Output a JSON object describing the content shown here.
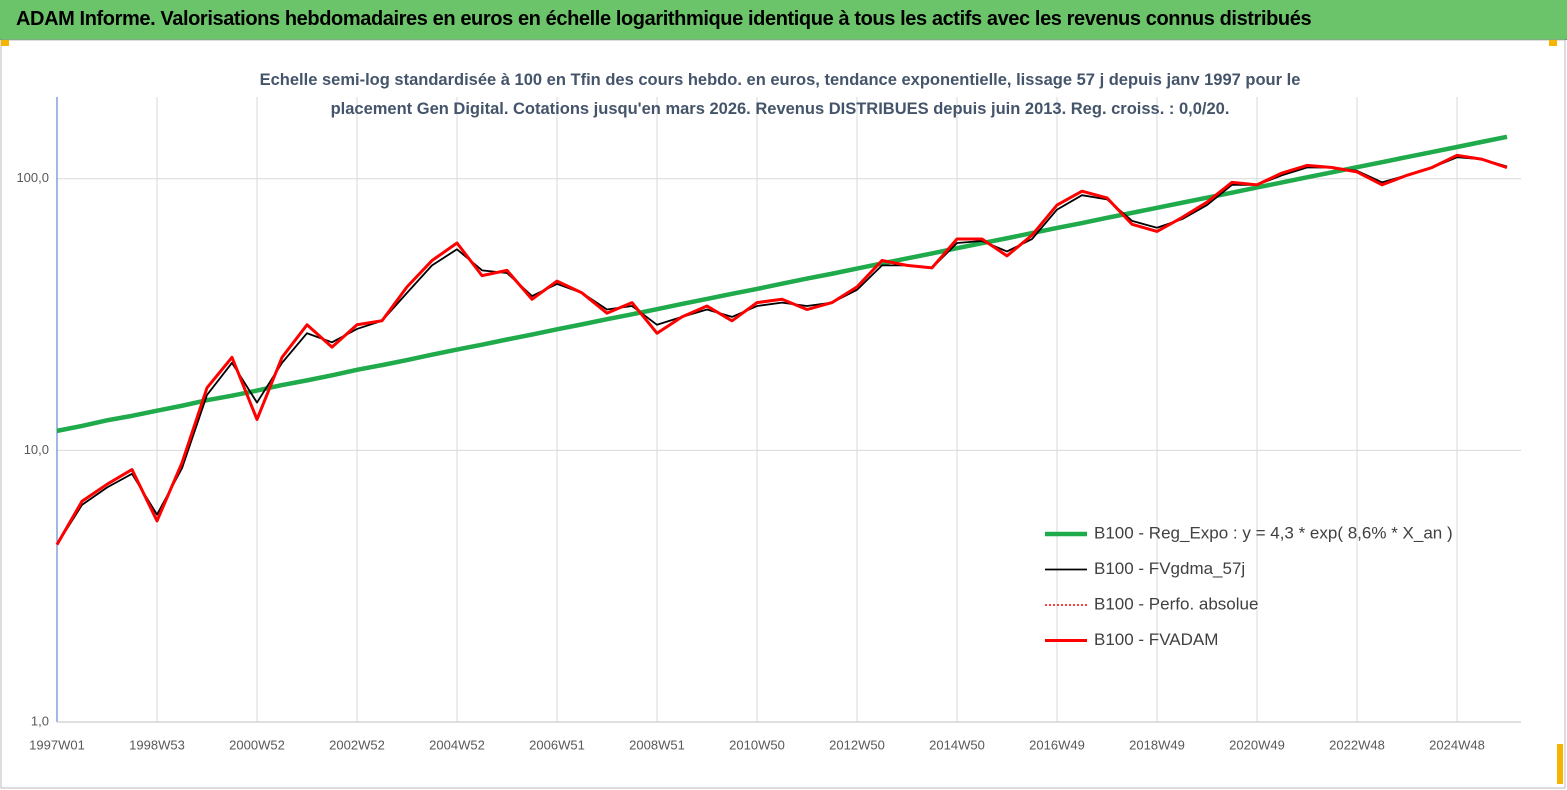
{
  "chart_data": {
    "type": "line",
    "header": "ADAM Informe. Valorisations hebdomadaires en euros en échelle logarithmique identique à tous les actifs avec les revenus connus distribués",
    "title": "Echelle semi-log standardisée à 100 en Tfin des cours hebdo. en euros, tendance exponentielle, lissage 57 j depuis janv 1997 pour le placement Gen Digital. Cotations jusqu'en mars 2026. Revenus DISTRIBUES depuis juin 2013. Reg. croiss. : 0,0/20.",
    "log_scale": true,
    "grid": true,
    "legend": "lower right",
    "categories": [
      "1997W01",
      null,
      null,
      null,
      "1998W53",
      null,
      null,
      null,
      "2000W52",
      null,
      null,
      null,
      "2002W52",
      null,
      null,
      null,
      "2004W52",
      null,
      null,
      null,
      "2006W51",
      null,
      null,
      null,
      "2008W51",
      null,
      null,
      null,
      "2010W50",
      null,
      null,
      null,
      "2012W50",
      null,
      null,
      null,
      "2014W50",
      null,
      null,
      null,
      "2016W49",
      null,
      null,
      null,
      "2018W49",
      null,
      null,
      null,
      "2020W49",
      null,
      null,
      null,
      "2022W48",
      null,
      null,
      null,
      "2024W48",
      null,
      null
    ],
    "ylim": [
      1,
      200
    ],
    "yticks": [
      {
        "value": 1,
        "label": "1,0"
      },
      {
        "value": 10,
        "label": "10,0"
      },
      {
        "value": 100,
        "label": "100,0"
      }
    ],
    "series": [
      {
        "name": "B100 - Reg_Expo : y = 4,3 *  exp( 8,6% *  X_an )",
        "color": "#1faa4b",
        "values": [
          11.8,
          12.3,
          12.9,
          13.4,
          14.0,
          14.6,
          15.3,
          15.9,
          16.6,
          17.4,
          18.1,
          18.9,
          19.8,
          20.6,
          21.5,
          22.5,
          23.5,
          24.5,
          25.6,
          26.7,
          27.9,
          29.1,
          30.4,
          31.7,
          33.1,
          34.6,
          36.1,
          37.7,
          39.3,
          41.1,
          42.9,
          44.7,
          46.7,
          48.8,
          50.9,
          53.1,
          55.5,
          57.9,
          60.4,
          63.1,
          65.9,
          68.7,
          71.8,
          74.9,
          78.2,
          81.6,
          85.2,
          88.9,
          92.9,
          96.9,
          101.2,
          105.6,
          110.3,
          115.1,
          120.2,
          125.4,
          130.9,
          136.7,
          142.7
        ]
      },
      {
        "name": "B100 - FVgdma_57j",
        "color": "#000000",
        "values": [
          4.5,
          6.3,
          7.3,
          8.2,
          5.8,
          8.6,
          16,
          21,
          15,
          21,
          27,
          25,
          28,
          30,
          38,
          48,
          55,
          46,
          45,
          37,
          41,
          38,
          33,
          34,
          29,
          31,
          33,
          31,
          34,
          35,
          34,
          35,
          39,
          48,
          48,
          47,
          58,
          59,
          54,
          60,
          77,
          87,
          84,
          70,
          66,
          71,
          80,
          95,
          95,
          103,
          110,
          110,
          107,
          97,
          103,
          110,
          120,
          118,
          111
        ]
      },
      {
        "name": "B100 - Perfo. absolue",
        "color": "#ff0000",
        "dash": true,
        "values": [
          4.5,
          6.5,
          7.5,
          8.5,
          5.5,
          9,
          17,
          22,
          13,
          22,
          29,
          24,
          29,
          30,
          40,
          50,
          58,
          44,
          46,
          36,
          42,
          38,
          32,
          35,
          27,
          31,
          34,
          30,
          35,
          36,
          33,
          35,
          40,
          50,
          48,
          47,
          60,
          60,
          52,
          62,
          80,
          90,
          85,
          68,
          64,
          72,
          82,
          97,
          95,
          105,
          112,
          110,
          106,
          95,
          103,
          110,
          122,
          118,
          110
        ]
      },
      {
        "name": "B100 - FVADAM",
        "color": "#ff0000",
        "values": [
          4.5,
          6.5,
          7.5,
          8.5,
          5.5,
          9,
          17,
          22,
          13,
          22,
          29,
          24,
          29,
          30,
          40,
          50,
          58,
          44,
          46,
          36,
          42,
          38,
          32,
          35,
          27,
          31,
          34,
          30,
          35,
          36,
          33,
          35,
          40,
          50,
          48,
          47,
          60,
          60,
          52,
          62,
          80,
          90,
          85,
          68,
          64,
          72,
          82,
          97,
          95,
          105,
          112,
          110,
          106,
          95,
          103,
          110,
          122,
          118,
          110
        ]
      }
    ]
  }
}
